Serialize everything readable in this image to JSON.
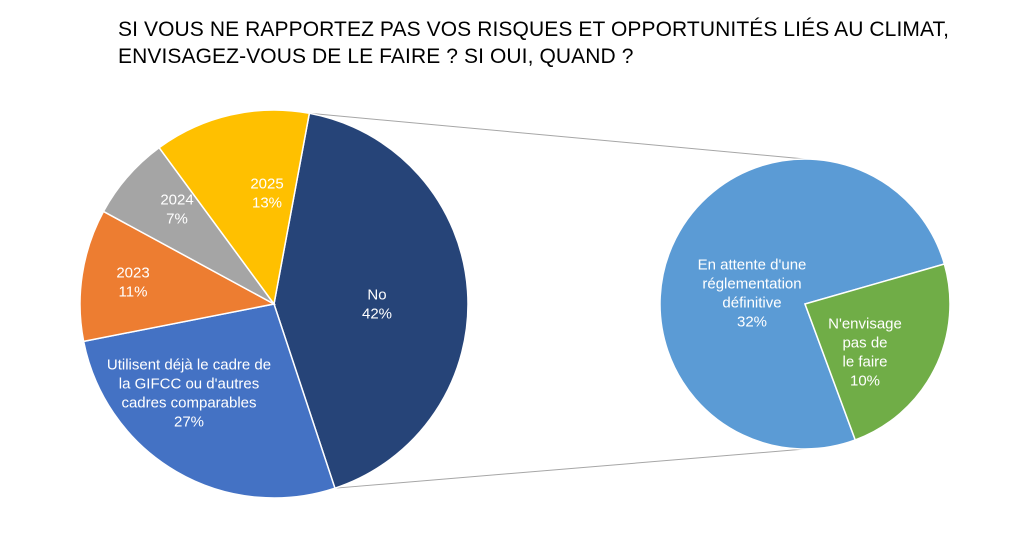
{
  "chart_data": {
    "type": "pie",
    "title": "SI VOUS NE RAPPORTEZ PAS VOS RISQUES ET OPPORTUNITÉS LIÉS AU CLIMAT, ENVISAGEZ-VOUS DE LE FAIRE ? SI OUI, QUAND ?",
    "subtype": "pie-of-pie",
    "main_pie": [
      {
        "label_lines": [
          "No"
        ],
        "value": 42,
        "value_label": "42%",
        "color": "#264478"
      },
      {
        "label_lines": [
          "Utilisent déjà le cadre de",
          "la GIFCC ou d'autres",
          "cadres comparables"
        ],
        "value": 27,
        "value_label": "27%",
        "color": "#4472C4"
      },
      {
        "label_lines": [
          "2023"
        ],
        "value": 11,
        "value_label": "11%",
        "color": "#ED7D31"
      },
      {
        "label_lines": [
          "2024"
        ],
        "value": 7,
        "value_label": "7%",
        "color": "#A5A5A5"
      },
      {
        "label_lines": [
          "2025"
        ],
        "value": 13,
        "value_label": "13%",
        "color": "#FFC000"
      }
    ],
    "secondary_pie": [
      {
        "label_lines": [
          "En attente d'une",
          "réglementation",
          "définitive"
        ],
        "value": 32,
        "value_label": "32%",
        "color": "#5B9BD5"
      },
      {
        "label_lines": [
          "N'envisage",
          "pas de",
          "le faire"
        ],
        "value": 10,
        "value_label": "10%",
        "color": "#70AD47"
      }
    ],
    "connector_color": "#A6A6A6"
  }
}
